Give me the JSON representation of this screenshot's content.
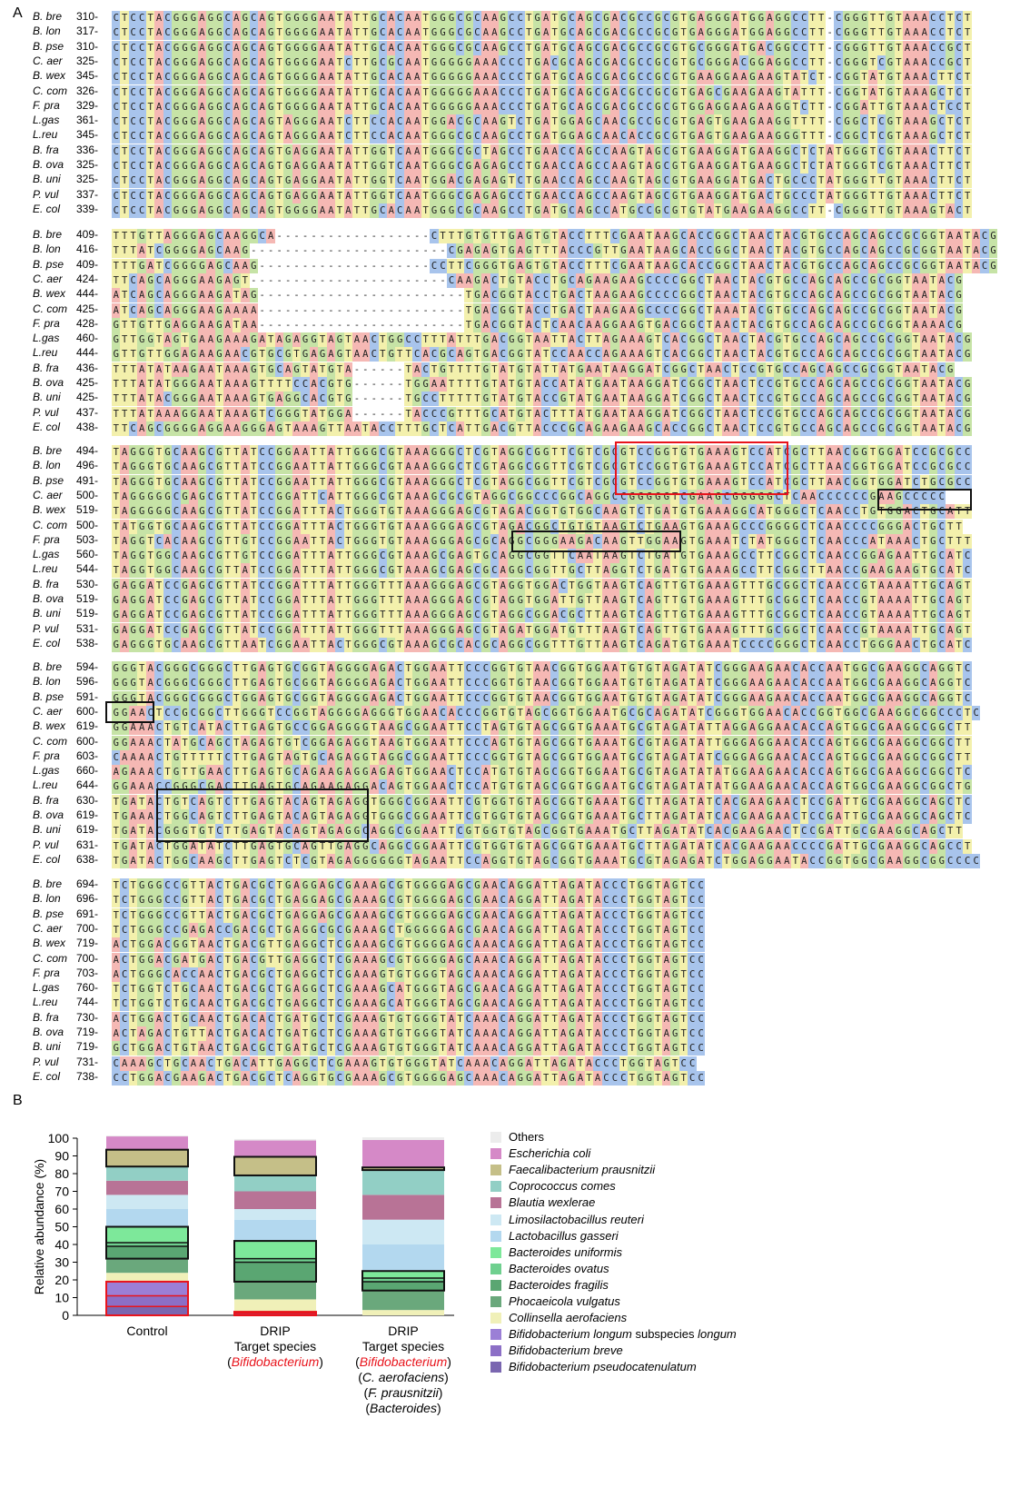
{
  "panel_a": {
    "label": "A",
    "blocks": [
      {
        "rows": [
          {
            "species": "B. bre",
            "pos": "310-",
            "seq": "CTCCTACGGGAGGCAGCAGTGGGGAATATTGCACAATGGGCGCAAGCCTGATGCAGCGACGCCGCGTGAGGGATGGAGGCCTT-CGGGTTGTAAACCTCT"
          },
          {
            "species": "B. lon",
            "pos": "317-",
            "seq": "CTCCTACGGGAGGCAGCAGTGGGGAATATTGCACAATGGGCGCAAGCCTGATGCAGCGACGCCGCGTGAGGGATGGAGGCCTT-CGGGTTGTAAACCTCT"
          },
          {
            "species": "B. pse",
            "pos": "310-",
            "seq": "CTCCTACGGGAGGCAGCAGTGGGGAATATTGCACAATGGGCGCAAGCCTGATGCAGCGACGCCGCGTGCGGGATGACGGCCTT-CGGGTTGTAAACCGCT"
          },
          {
            "species": "C. aer",
            "pos": "325-",
            "seq": "CTCCTACGGGAGGCAGCAGTGGGGAATCTTGCGCAATGGGGGAAACCCTGACGCAGCGACGCCGCGTGCGGGACGGAGGCCTT-CGGGTCGTAAACCGCT"
          },
          {
            "species": "B. wex",
            "pos": "345-",
            "seq": "CTCCTACGGGAGGCAGCAGTGGGGAATATTGCACAATGGGGGAAACCCTGATGCAGCGACGCCGCGTGAAGGAAGAAGTATCT-CGGTATGTAAACTTCT"
          },
          {
            "species": "C. com",
            "pos": "326-",
            "seq": "CTCCTACGGGAGGCAGCAGTGGGGAATATTGCACAATGGGGGAAACCCTGATGCAGCGACGCCGCGTGAGCGAAGAAGTATTT-CGGTATGTAAAGCTCT"
          },
          {
            "species": "F. pra",
            "pos": "329-",
            "seq": "CTCCTACGGGAGGCAGCAGTGGGGAATATTGCACAATGGGGGAAACCCTGATGCAGCGACGCCGCGTGGAGGAAGAAGGTCTT-CGGATTGTAAACTCCT"
          },
          {
            "species": "L.gas",
            "pos": "361-",
            "seq": "CTCCTACGGGAGGCAGCAGTAGGGAATCTTCCACAATGGACGCAAGTCTGATGGAGCAACGCCGCGTGAGTGAAGAAGGTTTT-CGGCTCGTAAAGCTCT"
          },
          {
            "species": "L.reu",
            "pos": "345-",
            "seq": "CTCCTACGGGAGGCAGCAGTAGGGAATCTTCCACAATGGGCGCAAGCCTGATGGAGCAACACCGCGTGAGTGAAGAAGGGTTT-CGGCTCGTAAAGCTCT"
          },
          {
            "species": "B. fra",
            "pos": "336-",
            "seq": "CTCCTACGGGAGGCAGCAGTGAGGAATATTGGTCAATGGGCGCTAGCCTGAACCAGCCAAGTAGCGTGAAGGATGAAGGCTCTATGGGTCGTAAACTTCT"
          },
          {
            "species": "B. ova",
            "pos": "325-",
            "seq": "CTCCTACGGGAGGCAGCAGTGAGGAATATTGGTCAATGGGCGAGAGCCTGAACCAGCCAAGTAGCGTGAAGGATGAAGGCTCTATGGGTCGTAAACTTCT"
          },
          {
            "species": "B. uni",
            "pos": "325-",
            "seq": "CTCCTACGGGAGGCAGCAGTGAGGAATATTGGTCAATGGACGAGAGTCTGAACCAGCCAAGTAGCGTGAAGGATGACTGCCCTATGGGTTGTAAACTTCT"
          },
          {
            "species": "P. vul",
            "pos": "337-",
            "seq": "CTCCTACGGGAGGCAGCAGTGAGGAATATTGGTCAATGGGCGAGAGCCTGAACCAGCCAAGTAGCGTGAAGGATGACTGCCCTATGGGTTGTAAACTTCT"
          },
          {
            "species": "E. col",
            "pos": "339-",
            "seq": "CTCCTACGGGAGGCAGCAGTGGGGAATATTGCACAATGGGCGCAAGCCTGATGCAGCCATGCCGCGTGTATGAAGAAGGCCTT-CGGGTTGTAAAGTACT"
          }
        ]
      },
      {
        "rows": [
          {
            "species": "B. bre",
            "pos": "409-",
            "seq": "TTTGTTAGGGAGCAAGGCA------------------CTTTGTGTTGAGTGTACCTTTCGAATAAGCACCGGCTAACTACGTGCCAGCAGCCGCGGTAATACG"
          },
          {
            "species": "B. lon",
            "pos": "416-",
            "seq": "TTTATCGGGGAGCAAG-----------------------CGAGAGTGAGTTTACCCGTTGAATAAGCACCGGCTAACTACGTGCCAGCAGCCGCGGTAATACG"
          },
          {
            "species": "B. pse",
            "pos": "409-",
            "seq": "TTTGATCGGGGAGCAAG--------------------CCTTCGGGTGAGTGTACCTTTCGAATAAGCACCGGCTAACTACGTGCCAGCAGCCGCGGTAATACG"
          },
          {
            "species": "C. aer",
            "pos": "424-",
            "seq": "TTCAGCAGGGAAGAGT-----------------------CAAGACTGTACCTGCAGAAGAAGCCCCGGCTAACTACGTGCCAGCAGCCGCGGTAATACG"
          },
          {
            "species": "B. wex",
            "pos": "444-",
            "seq": "ATCAGCAGGGAAGATAG------------------------TGACGGTACCTGACTAAGAAGCCCCGGCTAACTACGTGCCAGCAGCCGCGGTAATACG"
          },
          {
            "species": "C. com",
            "pos": "425-",
            "seq": "ATCAGCAGGGAAGAAAA------------------------TGACGGTACCTGACTAAGAAGCCCCGGCTAAATACGTGCCAGCAGCCGCGGTAATACG"
          },
          {
            "species": "F. pra",
            "pos": "428-",
            "seq": "GTTGTTGAGGAAGATAA------------------------TGACGGTACTCAACAAGGAAGTGACGGCTAACTACGTGCCAGCAGCCGCGGTAAAACG"
          },
          {
            "species": "L.gas",
            "pos": "460-",
            "seq": "GTTGGTAGTGAAGAAAGATAGAGGTAGTAACTGGCCTTTATTTGACGGTAATTACTTAGAAAGTCACGGCTAACTACGTGCCAGCAGCCGCGGTAATACG"
          },
          {
            "species": "L.reu",
            "pos": "444-",
            "seq": "GTTGTTGGAGAAGAACGTGCGTGAGAGTAACTGTTCACGCAGTGACGGTATCCAACCAGAAAGTCACGGCTAACTACGTGCCAGCAGCCGCGGTAATACG"
          },
          {
            "species": "B. fra",
            "pos": "436-",
            "seq": "TTTATATAAGAATAAAGTGCAGTATGTA------TACTGTTTTGTATGTATTATGAATAAGGATCGGCTAACTCCGTGCCAGCAGCCGCGGTAATACG"
          },
          {
            "species": "B. ova",
            "pos": "425-",
            "seq": "TTTATATGGGAATAAAGTTTTCCACGTG------TGGAATTTTGTATGTACCATATGAATAAGGATCGGCTAACTCCGTGCCAGCAGCCGCGGTAATACG"
          },
          {
            "species": "B. uni",
            "pos": "425-",
            "seq": "TTTATACGGGAATAAAGTGAGGCACGTG------TGCCTTTTTGTATGTACCGTATGAATAAGGATCGGCTAACTCCGTGCCAGCAGCCGCGGTAATACG"
          },
          {
            "species": "P. vul",
            "pos": "437-",
            "seq": "TTTATAAAGGAATAAAGTCGGGTATGGA------TACCCGTTTGCATGTACTTTATGAATAAGGATCGGCTAACTCCGTGCCAGCAGCCGCGGTAATACG"
          },
          {
            "species": "E. col",
            "pos": "438-",
            "seq": "TTCAGCGGGGAGGAAGGGAGTAAAGTTAATACCTTTGCTCATTGACGTTACCCGCAGAAGAAGCACCGGCTAACTCCGTGCCAGCAGCCGCGGTAATACG"
          }
        ]
      },
      {
        "rows": [
          {
            "species": "B. bre",
            "pos": "494-",
            "seq": "TAGGGTGCAAGCGTTATCCGGAATTATTGGGCGTAAAGGGCTCGTAGGCGGTTCGTCGCGTCCGGTGTGAAAGTCCATCGCTTAACGGTGGATCCGCGCC"
          },
          {
            "species": "B. lon",
            "pos": "496-",
            "seq": "TAGGGTGCAAGCGTTATCCGGAATTATTGGGCGTAAAGGGCTCGTAGGCGGTTCGTCGCGTCCGGTGTGAAAGTCCATCGCTTAACGGTGGATCCGCGCC"
          },
          {
            "species": "B. pse",
            "pos": "491-",
            "seq": "TAGGGTGCAAGCGTTATCCGGAATTATTGGGCGTAAAGGGCTCGTAGGCGGTTCGTCGCGTCCGGTGTGAAAGTCCATCGCTTAACGGTGGATCTGCGCC"
          },
          {
            "species": "C. aer",
            "pos": "500-",
            "seq": "TAGGGGGCGAGCGTTATCCGGATTCATTGGGCGTAAAGCGCGTAGGCGGCCCGGCAGGCCGGGGGTCGAAGCGGGGGCTCAACCCCCCGAAGCCCCC"
          },
          {
            "species": "B. wex",
            "pos": "519-",
            "seq": "TAGGGGGCAAGCGTTATCCGGATTTACTGGGTGTAAAGGGAGCGTAGACGGTGTGGCAAGTCTGATGTGAAAGGCATGGGCTCAACCTGTGGACTGCATT"
          },
          {
            "species": "C. com",
            "pos": "500-",
            "seq": "TATGGTGCAAGCGTTATCCGGATTTACTGGGTGTAAAGGGAGCGTAGACGGCTGTGTAAGTCTGAAGTGAAAGCCCGGGGCTCAACCCCGGGACTGCTT"
          },
          {
            "species": "F. pra",
            "pos": "503-",
            "seq": "TAGGTCACAAGCGTTGTCCGGAATTACTGGGTGTAAAGGGAGCGCAGGCGGGAAGACAAGTTGGAAGTGAAATCTATGGGCTCAACCCATAAACTGCTTT"
          },
          {
            "species": "L.gas",
            "pos": "560-",
            "seq": "TAGGTGGCAAGCGTTGTCCGGATTTATTGGGCGTAAAGCGAGTGCAGGCGGTTCAATAAGTCTGATGTGAAAGCCTTCGGCTCAACCGGAGAATTGCATC"
          },
          {
            "species": "L.reu",
            "pos": "544-",
            "seq": "TAGGTGGCAAGCGTTATCCGGATTTATTGGGCGTAAAGCGAGCGCAGGCGGTTGCTTAGGTCTGATGTGAAAGCCTTCGGCTTAACCGAAGAAGTGCATC"
          },
          {
            "species": "B. fra",
            "pos": "530-",
            "seq": "GAGGATCCGAGCGTTATCCGGATTTATTGGGTTTAAAGGGAGCGTAGGTGGACTGGTAAGTCAGTTGTGAAAGTTTGCGGCTCAACCGTAAAATTGCAGT"
          },
          {
            "species": "B. ova",
            "pos": "519-",
            "seq": "GAGGATCCGAGCGTTATCCGGATTTATTGGGTTTAAAGGGAGCGTAGGTGGATTGTTAAGTCAGTTGTGAAAGTTTGCGGCTCAACCGTAAAATTGCAGT"
          },
          {
            "species": "B. uni",
            "pos": "519-",
            "seq": "GAGGATCCGAGCGTTATCCGGATTTATTGGGTTTAAAGGGAGCGTAGGCGGACGCTTAAGTCAGTTGTGAAAGTTTGCGGCTCAACCGTAAAATTGCAGT"
          },
          {
            "species": "P. vul",
            "pos": "531-",
            "seq": "GAGGATCCGAGCGTTATCCGGATTTATTGGGTTTAAAGGGAGCGTAGATGGATGTTTAAGTCAGTTGTGAAAGTTTGCGGCTCAACCGTAAAATTGCAGT"
          },
          {
            "species": "E. col",
            "pos": "538-",
            "seq": "GAGGGTGCAAGCGTTAATCGGAATTACTGGGCGTAAAGCGCACGCAGGCGGTTTGTTAAGTCAGATGTGAAATCCCCGGGCTCAACCTGGGAACTGCATC"
          }
        ]
      },
      {
        "rows": [
          {
            "species": "B. bre",
            "pos": "594-",
            "seq": "GGGTACGGGCGGGCTTGAGTGCGGTAGGGGAGACTGGAATTCCCGGTGTAACGGTGGAATGTGTAGATATCGGGAAGAACACCAATGGCGAAGGCAGGTC"
          },
          {
            "species": "B. lon",
            "pos": "596-",
            "seq": "GGGTACGGGCGGGCTTGAGTGCGGTAGGGGAGACTGGAATTCCCGGTGTAACGGTGGAATGTGTAGATATCGGGAAGAACACCAATGGCGAAGGCAGGTC"
          },
          {
            "species": "B. pse",
            "pos": "591-",
            "seq": "GGGTACGGGCGGGCTGGAGTGCGGTAGGGGAGACTGGAATTCCCGGTGTAACGGTGGAATGTGTAGATATCGGGAAGAACACCAATGGCGAAGGCAGGTC"
          },
          {
            "species": "C. aer",
            "pos": "600-",
            "seq": "GGAACTCCGCGGCTTGGGTCCGGTAGGGGAGGGTGGAACACCCGGTGTAGCGGTGGAATGCGCAGATATCGGGTGGAACACCGGTGGCGAAGGCGGCCCTC"
          },
          {
            "species": "B. wex",
            "pos": "619-",
            "seq": "GGAAACTGTCATACTTGAGTGCCGGAGGGGTAAGCGGAATTCCTAGTGTAGCGGTGAAATGCGTAGATATTAGGAGGAACACCAGTGGCGAAGGCGGCTT"
          },
          {
            "species": "C. com",
            "pos": "600-",
            "seq": "GGAAACTATGCAGCTAGAGTGTCGGAGAGGTAAGTGGAATTCCCAGTGTAGCGGTGAAATGCGTAGATATTGGGAGGAACACCAGTGGCGAAGGCGGCTT"
          },
          {
            "species": "F. pra",
            "pos": "603-",
            "seq": "CAAAACTGTTTTTCTTGAGTAGTGCAGAGGTAGGCGGAATTCCCGGTGTAGCGGTGGAATGCGTAGATATCGGGAGGAACACCAGTGGCGAAGGCGGCTT"
          },
          {
            "species": "L.gas",
            "pos": "660-",
            "seq": "AGAAACTGTTGAACTTGAGTGCAGAAGAGGAGAGTGGAACTCCATGTGTAGCGGTGGAATGCGTAGATATATGGAAGAACACCAGTGGCGAAGGCGGCTC"
          },
          {
            "species": "L.reu",
            "pos": "644-",
            "seq": "GGAAACCGGGCGACTTGAGTGCAGAAGAGGACAGTGGAACTCCATGTGTAGCGGTGGAATGCGTAGATATATGGAAGAACACCAGTGGCGAAGGCGGCTG"
          },
          {
            "species": "B. fra",
            "pos": "630-",
            "seq": "TGATACTGTCAGTCTTGAGTACAGTAGAGGTGGGCGGAATTCGTGGTGTAGCGGTGAAATGCTTAGATATCACGAAGAACTCCGATTGCGAAGGCAGCTC"
          },
          {
            "species": "B. ova",
            "pos": "619-",
            "seq": "TGAAACTGGCAGTCTTGAGTACAGTAGAGGTGGGCGGAATTCGTGGTGTAGCGGTGAAATGCTTAGATATCACGAAGAACTCCGATTGCGAAGGCAGCTC"
          },
          {
            "species": "B. uni",
            "pos": "619-",
            "seq": "TGATACGGGTGTCTTGAGTACAGTAGAGGCAGGCGGAATTCGTGGTGTAGCGGTGAAATGCTTAGATATCACGAAGAACTCCGATTGCGAAGGCAGCTT"
          },
          {
            "species": "P. vul",
            "pos": "631-",
            "seq": "TGATACTGGATATCTTGAGTGCAGTTGAGGCAGGCGGAATTCGTGGTGTAGCGGTGAAATGCTTAGATATCACGAAGAACCCCGATTGCGAAGGCAGCCT"
          },
          {
            "species": "E. col",
            "pos": "638-",
            "seq": "TGATACTGGCAAGCTTGAGTCTCGTAGAGGGGGGTAGAATTCCAGGTGTAGCGGTGAAATGCGTAGAGATCTGGAGGAATACCGGTGGCGAAGGCGGCCCC"
          }
        ]
      },
      {
        "rows": [
          {
            "species": "B. bre",
            "pos": "694-",
            "seq": "TCTGGGCCGTTACTGACGCTGAGGAGCGAAAGCGTGGGGAGCGAACAGGATTAGATACCCTGGTAGTCC"
          },
          {
            "species": "B. lon",
            "pos": "696-",
            "seq": "TCTGGGCCGTTACTGACGCTGAGGAGCGAAAGCGTGGGGAGCGAACAGGATTAGATACCCTGGTAGTCC"
          },
          {
            "species": "B. pse",
            "pos": "691-",
            "seq": "TCTGGGCCGTTACTGACGCTGAGGAGCGAAAGCGTGGGGAGCGAACAGGATTAGATACCCTGGTAGTCC"
          },
          {
            "species": "C. aer",
            "pos": "700-",
            "seq": "TCTGGGCCGAGACCGACGCTGAGGCGCGAAAGCTGGGGGAGCGAACAGGATTAGATACCCTGGTAGTCC"
          },
          {
            "species": "B. wex",
            "pos": "719-",
            "seq": "ACTGGACGGTAACTGACGTTGAGGCTCGAAAGCGTGGGGAGCAAACAGGATTAGATACCCTGGTAGTCC"
          },
          {
            "species": "C. com",
            "pos": "700-",
            "seq": "ACTGGACGATGACTGACGTTGAGGCTCGAAAGCGTGGGGAGCAAACAGGATTAGATACCCTGGTAGTCC"
          },
          {
            "species": "F. pra",
            "pos": "703-",
            "seq": "ACTGGGCACCAACTGACGCTGAGGCTCGAAAGTGTGGGTAGCAAACAGGATTAGATACCCTGGTAGTCC"
          },
          {
            "species": "L.gas",
            "pos": "760-",
            "seq": "TCTGGTCTGCAACTGACGCTGAGGCTCGAAAGCATGGGTAGCGAACAGGATTAGATACCCTGGTAGTCC"
          },
          {
            "species": "L.reu",
            "pos": "744-",
            "seq": "TCTGGTCTGCAACTGACGCTGAGGCTCGAAAGCATGGGTAGCGAACAGGATTAGATACCCTGGTAGTCC"
          },
          {
            "species": "B. fra",
            "pos": "730-",
            "seq": "ACTGGACTGCAACTGACACTGATGCTCGAAAGTGTGGGTATCAAACAGGATTAGATACCCTGGTAGTCC"
          },
          {
            "species": "B. ova",
            "pos": "719-",
            "seq": "ACTAGACTGTTACTGACACTGATGCTCGAAAGTGTGGGTATCAAACAGGATTAGATACCCTGGTAGTCC"
          },
          {
            "species": "B. uni",
            "pos": "719-",
            "seq": "GCTGGACTGTAACTGACGCTGATGCTCGAAAGTGTGGGTATCAAACAGGATTAGATACCCTGGTAGTCC"
          },
          {
            "species": "P. vul",
            "pos": "731-",
            "seq": "CAAAGCTGCAACTGACATTGAGGCTCGAAAGTGTGGGTATCAAACAGGATTAGATACCCTGGTAGTCC"
          },
          {
            "species": "E. col",
            "pos": "738-",
            "seq": "CCTGGACGAAGACTGACGCTCAGGTGCGAAAGCGTGGGGAGCAAACAGGATTAGATACCCTGGTAGTCC"
          }
        ]
      }
    ]
  },
  "panel_b": {
    "label": "B",
    "chart_data": {
      "type": "bar",
      "stacked": true,
      "ylabel": "Relative abundance (%)",
      "ylim": [
        0,
        100
      ],
      "yticks": [
        0,
        10,
        20,
        30,
        40,
        50,
        60,
        70,
        80,
        90,
        100
      ],
      "categories": [
        {
          "lines": [
            "Control"
          ]
        },
        {
          "lines": [
            "DRIP",
            "Target species",
            "(Bifidobacterium)"
          ]
        },
        {
          "lines": [
            "DRIP",
            "Target species",
            "(Bifidobacterium)",
            "(C. aerofaciens)",
            "(F. prausnitzii)",
            "(Bacteroides)"
          ]
        }
      ],
      "legend_position": "right",
      "series": [
        {
          "name": "Others",
          "color": "#ececec",
          "values": [
            0.5,
            0.8,
            1.5
          ]
        },
        {
          "name": "Escherichia coli",
          "color": "#d589c7",
          "values": [
            7.5,
            9.2,
            15.5
          ]
        },
        {
          "name": "Faecalibacterium prausnitzii",
          "color": "#c5bf88",
          "values": [
            9.5,
            10.5,
            1.5
          ]
        },
        {
          "name": "Coprococcus comes",
          "color": "#92cfc5",
          "values": [
            8,
            9,
            14
          ]
        },
        {
          "name": "Blautia wexlerae",
          "color": "#b87396",
          "values": [
            8,
            10,
            14
          ]
        },
        {
          "name": "Limosilactobacillus reuteri",
          "color": "#cde8f3",
          "values": [
            8,
            6,
            14
          ]
        },
        {
          "name": "Lactobacillus gasseri",
          "color": "#b3d8ef",
          "values": [
            10,
            12,
            15
          ]
        },
        {
          "name": "Bacteroides uniformis",
          "color": "#7de89a",
          "values": [
            9,
            10,
            4
          ]
        },
        {
          "name": "Bacteroides ovatus",
          "color": "#6fd08f",
          "values": [
            2,
            2,
            2
          ]
        },
        {
          "name": "Bacteroides fragilis",
          "color": "#5aa672",
          "values": [
            7,
            11,
            5
          ]
        },
        {
          "name": "Phocaeicola vulgatus",
          "color": "#6aa87c",
          "values": [
            8,
            10,
            11
          ]
        },
        {
          "name": "Collinsella aerofaciens",
          "color": "#f0f0b8",
          "values": [
            5,
            7,
            3
          ]
        },
        {
          "name": "Bifidobacterium longum subspecies longum",
          "color": "#9b7fd6",
          "values": [
            8,
            0.5,
            0
          ]
        },
        {
          "name": "Bifidobacterium breve",
          "color": "#8c6fc6",
          "values": [
            6,
            0.5,
            0
          ]
        },
        {
          "name": "Bifidobacterium pseudocatenulatum",
          "color": "#7a66b0",
          "values": [
            5,
            1,
            0
          ]
        }
      ],
      "highlight": [
        {
          "bar": 0,
          "from_series": 12,
          "to_series": 14,
          "color": "red"
        },
        {
          "bar": 1,
          "from_series": 12,
          "to_series": 14,
          "color": "red"
        },
        {
          "bar": 0,
          "from_series": 7,
          "to_series": 9,
          "color": "black"
        },
        {
          "bar": 1,
          "from_series": 7,
          "to_series": 9,
          "color": "black"
        },
        {
          "bar": 2,
          "from_series": 7,
          "to_series": 9,
          "color": "black"
        },
        {
          "bar": 0,
          "from_series": 2,
          "to_series": 2,
          "color": "black"
        },
        {
          "bar": 1,
          "from_series": 2,
          "to_series": 2,
          "color": "black"
        },
        {
          "bar": 2,
          "from_series": 2,
          "to_series": 2,
          "color": "black"
        }
      ]
    }
  }
}
